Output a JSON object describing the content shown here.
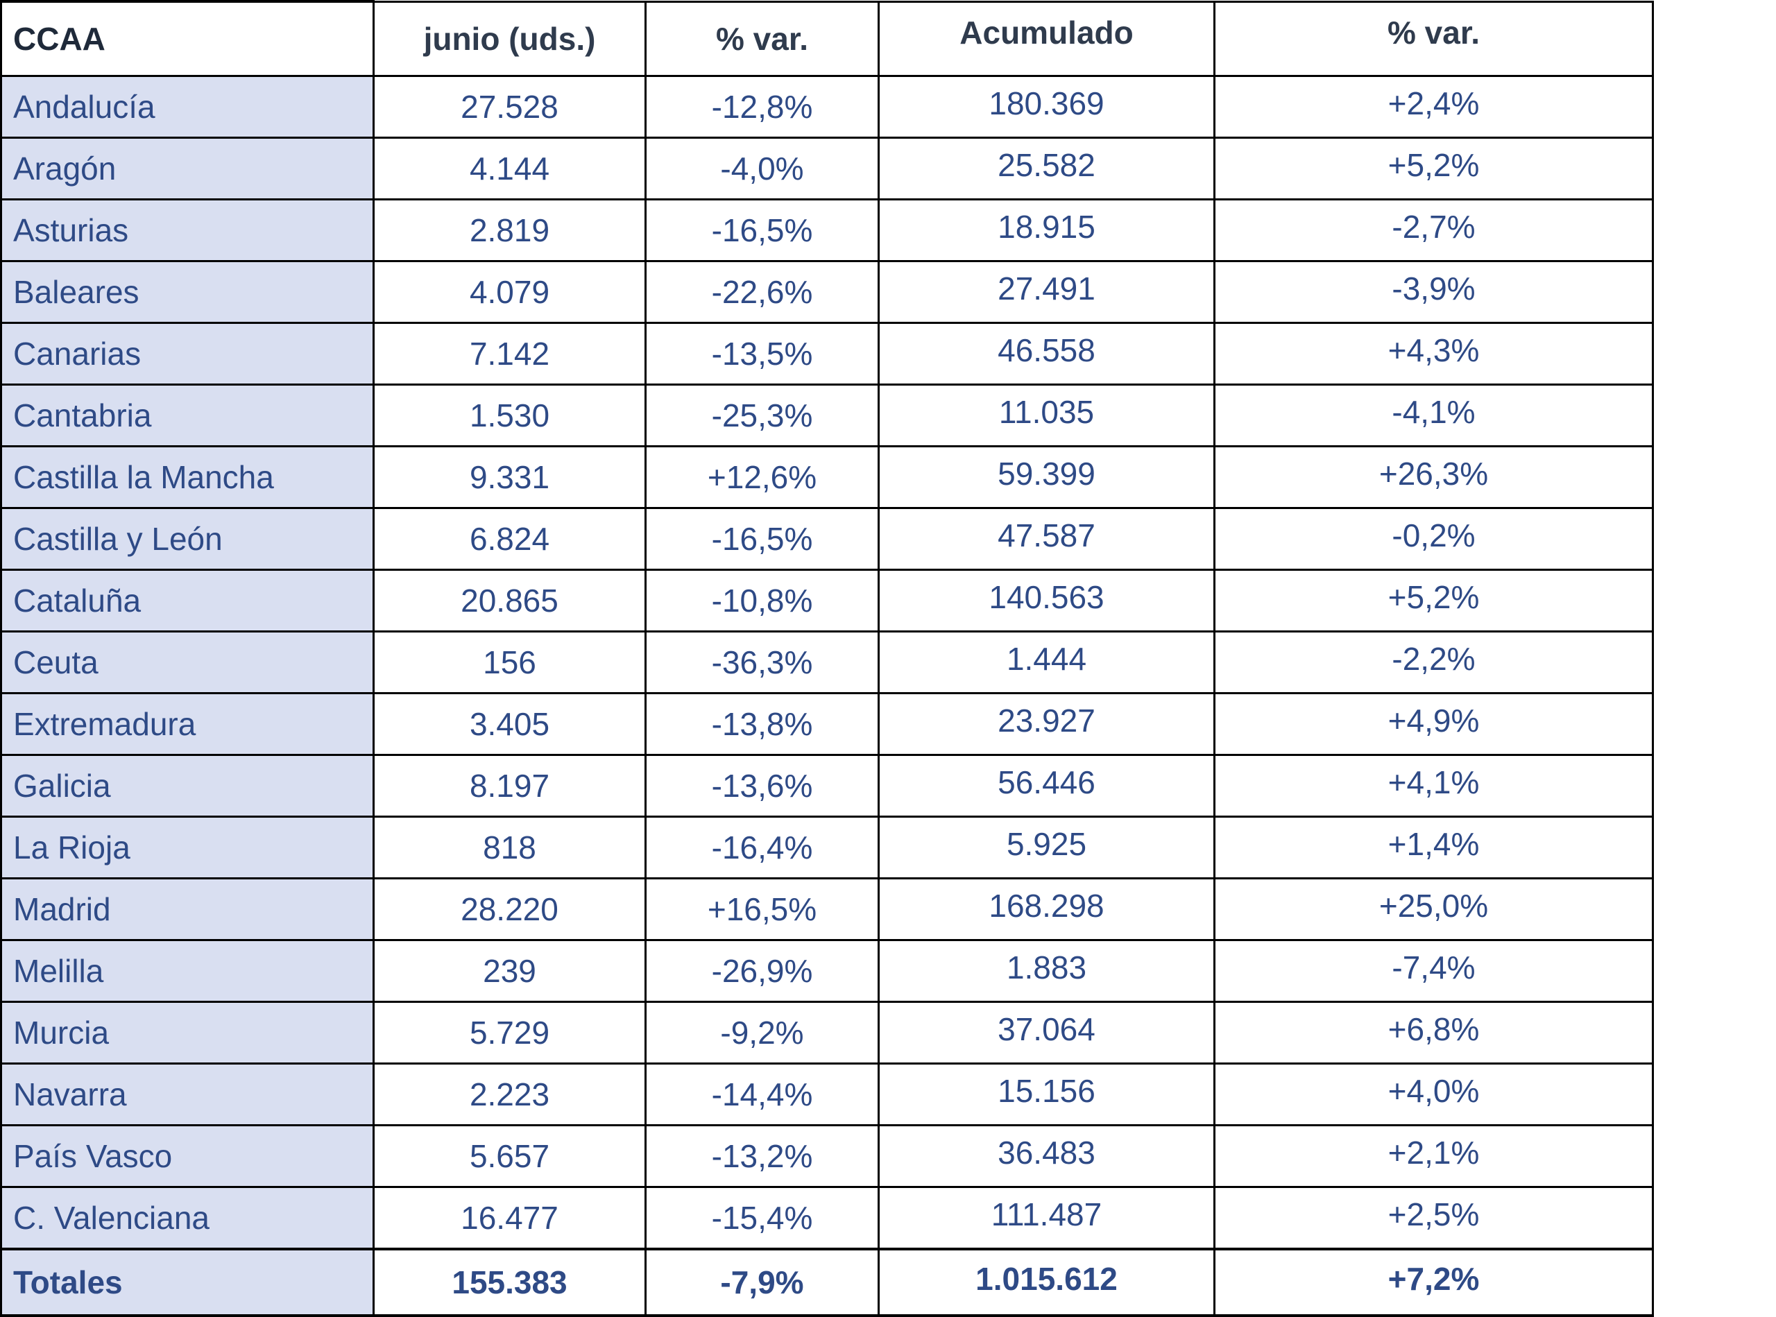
{
  "table": {
    "headers": [
      "CCAA",
      "junio (uds.)",
      "% var.",
      "Acumulado",
      "% var."
    ],
    "rows": [
      [
        "Andalucía",
        "27.528",
        "-12,8%",
        "180.369",
        "+2,4%"
      ],
      [
        "Aragón",
        "4.144",
        "-4,0%",
        "25.582",
        "+5,2%"
      ],
      [
        "Asturias",
        "2.819",
        "-16,5%",
        "18.915",
        "-2,7%"
      ],
      [
        "Baleares",
        "4.079",
        "-22,6%",
        "27.491",
        "-3,9%"
      ],
      [
        "Canarias",
        "7.142",
        "-13,5%",
        "46.558",
        "+4,3%"
      ],
      [
        "Cantabria",
        "1.530",
        "-25,3%",
        "11.035",
        "-4,1%"
      ],
      [
        "Castilla la Mancha",
        "9.331",
        "+12,6%",
        "59.399",
        "+26,3%"
      ],
      [
        "Castilla y León",
        "6.824",
        "-16,5%",
        "47.587",
        "-0,2%"
      ],
      [
        "Cataluña",
        "20.865",
        "-10,8%",
        "140.563",
        "+5,2%"
      ],
      [
        "Ceuta",
        "156",
        "-36,3%",
        "1.444",
        "-2,2%"
      ],
      [
        "Extremadura",
        "3.405",
        "-13,8%",
        "23.927",
        "+4,9%"
      ],
      [
        "Galicia",
        "8.197",
        "-13,6%",
        "56.446",
        "+4,1%"
      ],
      [
        "La Rioja",
        "818",
        "-16,4%",
        "5.925",
        "+1,4%"
      ],
      [
        "Madrid",
        "28.220",
        "+16,5%",
        "168.298",
        "+25,0%"
      ],
      [
        "Melilla",
        "239",
        "-26,9%",
        "1.883",
        "-7,4%"
      ],
      [
        "Murcia",
        "5.729",
        "-9,2%",
        "37.064",
        "+6,8%"
      ],
      [
        "Navarra",
        "2.223",
        "-14,4%",
        "15.156",
        "+4,0%"
      ],
      [
        "País Vasco",
        "5.657",
        "-13,2%",
        "36.483",
        "+2,1%"
      ],
      [
        "C. Valenciana",
        "16.477",
        "-15,4%",
        "111.487",
        "+2,5%"
      ]
    ],
    "totals": [
      "Totales",
      "155.383",
      "-7,9%",
      "1.015.612",
      "+7,2%"
    ]
  },
  "colors": {
    "text": "#2e4a86",
    "header_text": "#2f3b4d",
    "region_fill": "#d9dff1",
    "border": "#000000"
  }
}
